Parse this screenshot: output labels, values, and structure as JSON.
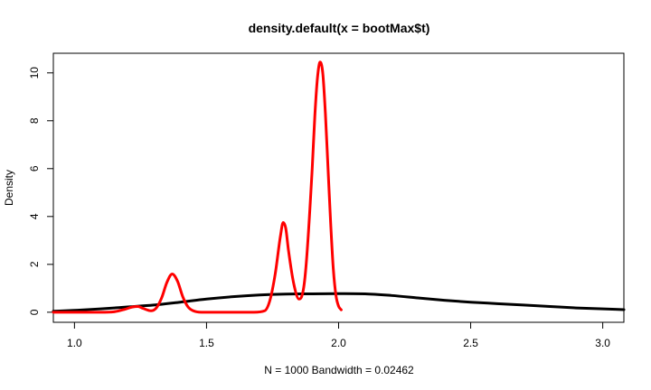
{
  "chart_data": {
    "type": "line",
    "title": "density.default(x = bootMax$t)",
    "xlabel": "N = 1000   Bandwidth = 0.02462",
    "ylabel": "Density",
    "xlim": [
      0.92,
      3.08
    ],
    "ylim": [
      -0.42,
      10.82
    ],
    "xticks": [
      1.0,
      1.5,
      2.0,
      2.5,
      3.0
    ],
    "xtick_labels": [
      "1.0",
      "1.5",
      "2.0",
      "2.5",
      "3.0"
    ],
    "yticks": [
      0,
      2,
      4,
      6,
      8,
      10
    ],
    "ytick_labels": [
      "0",
      "2",
      "4",
      "6",
      "8",
      "10"
    ],
    "grid": false,
    "series": [
      {
        "color": "#000000",
        "x": [
          0.92,
          1.0,
          1.1,
          1.2,
          1.3,
          1.4,
          1.5,
          1.6,
          1.7,
          1.8,
          1.9,
          2.0,
          2.1,
          2.2,
          2.3,
          2.4,
          2.5,
          2.6,
          2.7,
          2.8,
          2.9,
          3.0,
          3.08
        ],
        "y": [
          0.04,
          0.08,
          0.14,
          0.22,
          0.3,
          0.42,
          0.55,
          0.65,
          0.72,
          0.76,
          0.77,
          0.78,
          0.77,
          0.7,
          0.6,
          0.5,
          0.42,
          0.36,
          0.3,
          0.24,
          0.18,
          0.14,
          0.11
        ]
      },
      {
        "color": "#ff0000",
        "x": [
          0.92,
          1.0,
          1.1,
          1.15,
          1.19,
          1.22,
          1.24,
          1.26,
          1.29,
          1.31,
          1.33,
          1.35,
          1.37,
          1.39,
          1.41,
          1.43,
          1.45,
          1.48,
          1.52,
          1.6,
          1.68,
          1.72,
          1.74,
          1.76,
          1.78,
          1.79,
          1.8,
          1.81,
          1.83,
          1.85,
          1.86,
          1.87,
          1.88,
          1.9,
          1.91,
          1.92,
          1.93,
          1.94,
          1.95,
          1.96,
          1.97,
          1.98,
          1.99,
          2.0,
          2.01
        ],
        "y": [
          0.0,
          0.0,
          0.0,
          0.02,
          0.12,
          0.22,
          0.24,
          0.16,
          0.06,
          0.18,
          0.6,
          1.25,
          1.6,
          1.3,
          0.65,
          0.22,
          0.06,
          0.0,
          0.0,
          0.0,
          0.0,
          0.06,
          0.5,
          1.6,
          3.2,
          3.75,
          3.5,
          2.6,
          1.2,
          0.55,
          0.65,
          1.2,
          2.4,
          6.0,
          8.2,
          9.8,
          10.45,
          10.0,
          8.3,
          6.0,
          3.7,
          1.8,
          0.7,
          0.25,
          0.1
        ]
      }
    ]
  }
}
